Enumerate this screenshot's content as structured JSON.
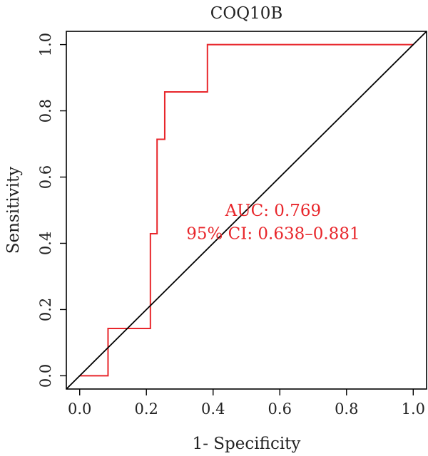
{
  "chart_data": {
    "type": "line",
    "title": "COQ10B",
    "xlabel": "1- Specificity",
    "ylabel": "Sensitivity",
    "xlim": [
      -0.04,
      1.04
    ],
    "ylim": [
      -0.04,
      1.04
    ],
    "xticks": [
      0.0,
      0.2,
      0.4,
      0.6,
      0.8,
      1.0
    ],
    "yticks": [
      0.0,
      0.2,
      0.4,
      0.6,
      0.8,
      1.0
    ],
    "xtick_labels": [
      "0.0",
      "0.2",
      "0.4",
      "0.6",
      "0.8",
      "1.0"
    ],
    "ytick_labels": [
      "0.0",
      "0.2",
      "0.4",
      "0.6",
      "0.8",
      "1.0"
    ],
    "grid": false,
    "legend": "none",
    "series": [
      {
        "kind": "step",
        "color": "#e8262b",
        "x": [
          0.0,
          0.085,
          0.085,
          0.212,
          0.212,
          0.232,
          0.232,
          0.255,
          0.255,
          0.383,
          0.383,
          1.0
        ],
        "y": [
          0.0,
          0.0,
          0.143,
          0.143,
          0.429,
          0.429,
          0.714,
          0.714,
          0.857,
          0.857,
          1.0,
          1.0
        ]
      },
      {
        "kind": "reference",
        "color": "#000000",
        "x": [
          -0.04,
          1.04
        ],
        "y": [
          -0.04,
          1.04
        ]
      }
    ],
    "annotations": [
      {
        "text": "AUC: 0.769",
        "x": 0.58,
        "y": 0.5,
        "color": "#e8262b"
      },
      {
        "text": "95% CI: 0.638–0.881",
        "x": 0.58,
        "y": 0.43,
        "color": "#e8262b"
      }
    ]
  }
}
